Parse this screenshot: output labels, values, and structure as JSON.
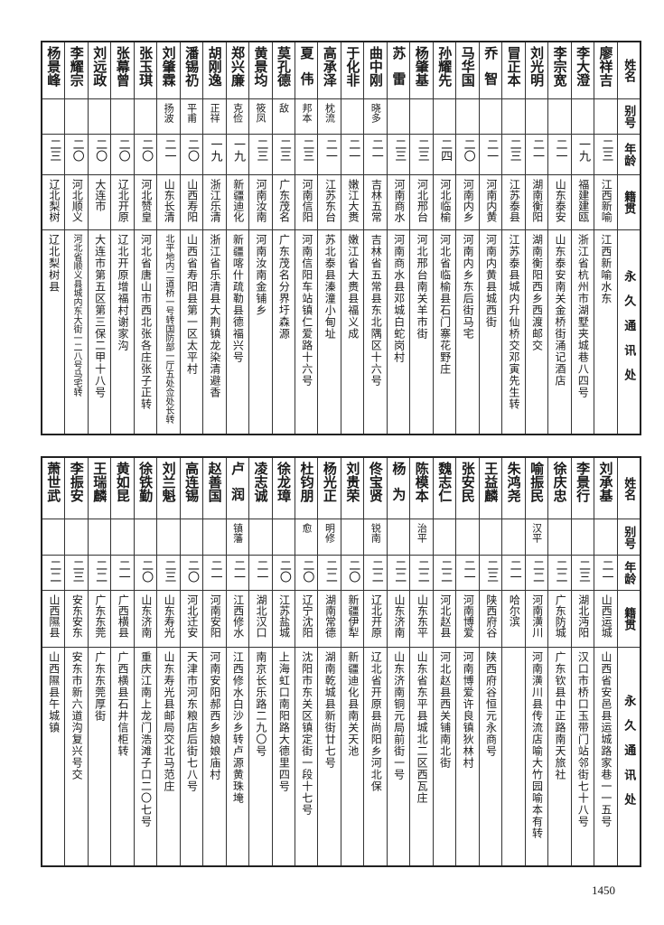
{
  "headers": {
    "name": "姓名",
    "alias": "别号",
    "age": "年龄",
    "native": "籍贯",
    "address": "永久通讯处"
  },
  "tables": [
    {
      "rows": [
        {
          "name": "廖祥吉",
          "alias": "",
          "age": "二三",
          "native": "江西新喻",
          "address": "江西新喻水东"
        },
        {
          "name": "李大澄",
          "alias": "",
          "age": "一九",
          "native": "福建建瓯",
          "address": "浙江省杭州市湖墅夹城巷八四号"
        },
        {
          "name": "李宗宽",
          "alias": "",
          "age": "二一",
          "native": "山东泰安",
          "address": "山东泰安南关金桥街涌记酒店"
        },
        {
          "name": "刘光明",
          "alias": "",
          "age": "二一",
          "native": "湖南衡阳",
          "address": "湖南衡阳西乡西渡邮交"
        },
        {
          "name": "冒正本",
          "alias": "",
          "age": "二三",
          "native": "江苏泰县",
          "address": "江苏泰县城内升仙桥交邓寅先生转"
        },
        {
          "name": "乔智",
          "alias": "",
          "age": "二一",
          "native": "河南内黄",
          "address": "河南内黄县城西街"
        },
        {
          "name": "马华国",
          "alias": "",
          "age": "二〇",
          "native": "河南内乡",
          "address": "河南内乡东后街马宅"
        },
        {
          "name": "孙耀先",
          "alias": "",
          "age": "二四",
          "native": "河北临榆",
          "address": "河北省临榆县石门寨花野庄"
        },
        {
          "name": "杨肇基",
          "alias": "",
          "age": "二三",
          "native": "河北邢台",
          "address": "河北邢台南关羊市街"
        },
        {
          "name": "苏雷",
          "alias": "",
          "age": "二三",
          "native": "河南商水",
          "address": "河南商水县邓城白蛇岗村"
        },
        {
          "name": "曲中刚",
          "alias": "晓多",
          "age": "二一",
          "native": "吉林五常",
          "address": "吉林省五常县东北隅区十六号"
        },
        {
          "name": "于化非",
          "alias": "",
          "age": "二一",
          "native": "嫩江大赉",
          "address": "嫩江省大赉县福义成"
        },
        {
          "name": "高承泽",
          "alias": "枕流",
          "age": "二一",
          "native": "江苏东台",
          "address": "苏北泰县溱潼小甸址"
        },
        {
          "name": "夏伟",
          "alias": "邦本",
          "age": "二三",
          "native": "河南信阳",
          "address": "河南信阳车站镇仁爱路十六号"
        },
        {
          "name": "莫孔德",
          "alias": "敌",
          "age": "二三",
          "native": "广东茂名",
          "address": "广东茂名分界圩森源"
        },
        {
          "name": "黄景均",
          "alias": "筱凤",
          "age": "二三",
          "native": "河南汝南",
          "address": "河南汝南金铺乡"
        },
        {
          "name": "郑兴廉",
          "alias": "克俭",
          "age": "一九",
          "native": "新疆迪化",
          "address": "新疆喀什疏勒县德福兴号"
        },
        {
          "name": "胡刚逸",
          "alias": "正祥",
          "age": "一九",
          "native": "浙江乐清",
          "address": "浙江省乐清县大荆镇龙染清避香"
        },
        {
          "name": "潘锡礽",
          "alias": "平甫",
          "age": "二〇",
          "native": "山西寿阳",
          "address": "山西省寿阳县第一区太平村"
        },
        {
          "name": "刘肇霖",
          "alias": "扬波",
          "age": "二一",
          "native": "山东长清",
          "address": "北平地内二道桥一号转国防部一厅五处佥处长转"
        },
        {
          "name": "张玉琪",
          "alias": "",
          "age": "二〇",
          "native": "河北赞皇",
          "address": "河北省唐山市西北张各庄张子正转"
        },
        {
          "name": "张幕曾",
          "alias": "",
          "age": "二〇",
          "native": "辽北开原",
          "address": "辽北开原增福村谢家沟"
        },
        {
          "name": "刘远政",
          "alias": "",
          "age": "二〇",
          "native": "大连市",
          "address": "大连市第五区第三保二甲十八号"
        },
        {
          "name": "李耀宗",
          "alias": "",
          "age": "二〇",
          "native": "河北顺义",
          "address": "河北省顺义县城内东大街一二八号马宅转"
        },
        {
          "name": "杨景峰",
          "alias": "",
          "age": "二三",
          "native": "辽北梨树",
          "address": "辽北梨树县"
        }
      ]
    },
    {
      "rows": [
        {
          "name": "刘承基",
          "alias": "",
          "age": "二一",
          "native": "山西运城",
          "address": "山西省安邑县运城路家巷一一五号"
        },
        {
          "name": "李景行",
          "alias": "",
          "age": "二三",
          "native": "湖北沔阳",
          "address": "汉口市桥口玉带门站邻街七十八号"
        },
        {
          "name": "徐庆忠",
          "alias": "",
          "age": "二二",
          "native": "广东防城",
          "address": "广东钦县中正路南天旅社"
        },
        {
          "name": "喻振民",
          "alias": "汉平",
          "age": "二二",
          "native": "河南潢川",
          "address": "河南潢川县传流店喻大竹园喻本有转"
        },
        {
          "name": "朱鸿尧",
          "alias": "",
          "age": "二一",
          "native": "哈尔滨",
          "address": ""
        },
        {
          "name": "王益麟",
          "alias": "",
          "age": "二三",
          "native": "陕西府谷",
          "address": "陕西府谷恒元永商号"
        },
        {
          "name": "张安民",
          "alias": "",
          "age": "二一",
          "native": "河南博爱",
          "address": "河南博爱许良镇狄林村"
        },
        {
          "name": "魏志仁",
          "alias": "",
          "age": "二二",
          "native": "河北赵县",
          "address": "河北赵县西关铺南北街"
        },
        {
          "name": "陈模本",
          "alias": "治平",
          "age": "二二",
          "native": "山东东平",
          "address": "山东省东平县城北二区西瓦庄"
        },
        {
          "name": "杨为",
          "alias": "",
          "age": "二二",
          "native": "山东济南",
          "address": "山东济南铜元局前街一号"
        },
        {
          "name": "佟宝贤",
          "alias": "锐南",
          "age": "二二",
          "native": "辽北开原",
          "address": "辽北省开原县尚阳乡河北保"
        },
        {
          "name": "刘贵荣",
          "alias": "",
          "age": "二〇",
          "native": "新疆伊犁",
          "address": "新疆迪化县南关天池"
        },
        {
          "name": "杨光正",
          "alias": "明修",
          "age": "二二",
          "native": "湖南常德",
          "address": "湖南乾城县新街廿七号"
        },
        {
          "name": "杜钧朋",
          "alias": "愈",
          "age": "二〇",
          "native": "辽宁沈阳",
          "address": "沈阳市东关区镇定街一段十七号"
        },
        {
          "name": "徐龙璋",
          "alias": "",
          "age": "二〇",
          "native": "江苏盐城",
          "address": "上海虹口南阳路大德里四号"
        },
        {
          "name": "凌志诚",
          "alias": "",
          "age": "二一",
          "native": "湖北汉口",
          "address": "南京长乐路二九〇号"
        },
        {
          "name": "卢润",
          "alias": "镇藩",
          "age": "二一",
          "native": "江西修水",
          "address": "江西修水白沙乡转卢源黄珠埯"
        },
        {
          "name": "赵善国",
          "alias": "",
          "age": "二一",
          "native": "河南安阳",
          "address": "河南安阳郝西乡娘娘庙村"
        },
        {
          "name": "高连锡",
          "alias": "",
          "age": "二〇",
          "native": "河北迁安",
          "address": "天津市河东粮店后街七八号"
        },
        {
          "name": "刘兰魁",
          "alias": "",
          "age": "二三",
          "native": "山东寿光",
          "address": "山东寿光县邮局交北马范庄"
        },
        {
          "name": "徐铁勤",
          "alias": "",
          "age": "二〇",
          "native": "山东济南",
          "address": "重庆江南上龙门浩滩子口二〇七号"
        },
        {
          "name": "黄如昆",
          "alias": "",
          "age": "二一",
          "native": "广西横县",
          "address": "广西横县石井信柜转"
        },
        {
          "name": "王瑞麟",
          "alias": "",
          "age": "二二",
          "native": "广东东莞",
          "address": "广东东莞厚街"
        },
        {
          "name": "李振安",
          "alias": "",
          "age": "二三",
          "native": "安东安东",
          "address": "安东市新六道沟复兴号交"
        },
        {
          "name": "萧世武",
          "alias": "",
          "age": "二二",
          "native": "山西隰县",
          "address": "山西隰县午城镇"
        }
      ]
    }
  ],
  "page_number": "1450"
}
